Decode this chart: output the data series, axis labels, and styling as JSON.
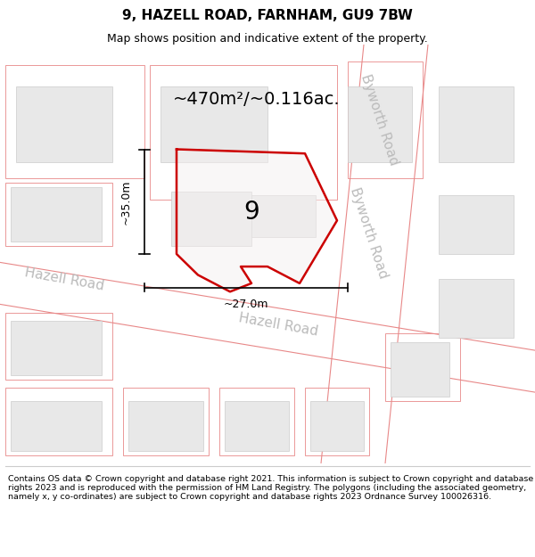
{
  "title": "9, HAZELL ROAD, FARNHAM, GU9 7BW",
  "subtitle": "Map shows position and indicative extent of the property.",
  "area_text": "~470m²/~0.116ac.",
  "number_label": "9",
  "dim_vertical": "~35.0m",
  "dim_horizontal": "~27.0m",
  "road_label_hazell": "Hazell Road",
  "road_label_byworth": "Byworth Road",
  "footer": "Contains OS data © Crown copyright and database right 2021. This information is subject to Crown copyright and database rights 2023 and is reproduced with the permission of HM Land Registry. The polygons (including the associated geometry, namely x, y co-ordinates) are subject to Crown copyright and database rights 2023 Ordnance Survey 100026316.",
  "map_bg": "#ffffff",
  "building_fill": "#e8e8e8",
  "building_edge": "#cccccc",
  "parcel_line_color": "#e88888",
  "road_band_color": "#ffffff",
  "road_edge_color": "#f0a0a0",
  "property_color": "#cc0000",
  "dim_color": "#000000",
  "title_fontsize": 11,
  "subtitle_fontsize": 9,
  "area_fontsize": 14,
  "number_fontsize": 20,
  "dim_fontsize": 9,
  "road_label_fontsize": 11,
  "footer_fontsize": 6.8
}
